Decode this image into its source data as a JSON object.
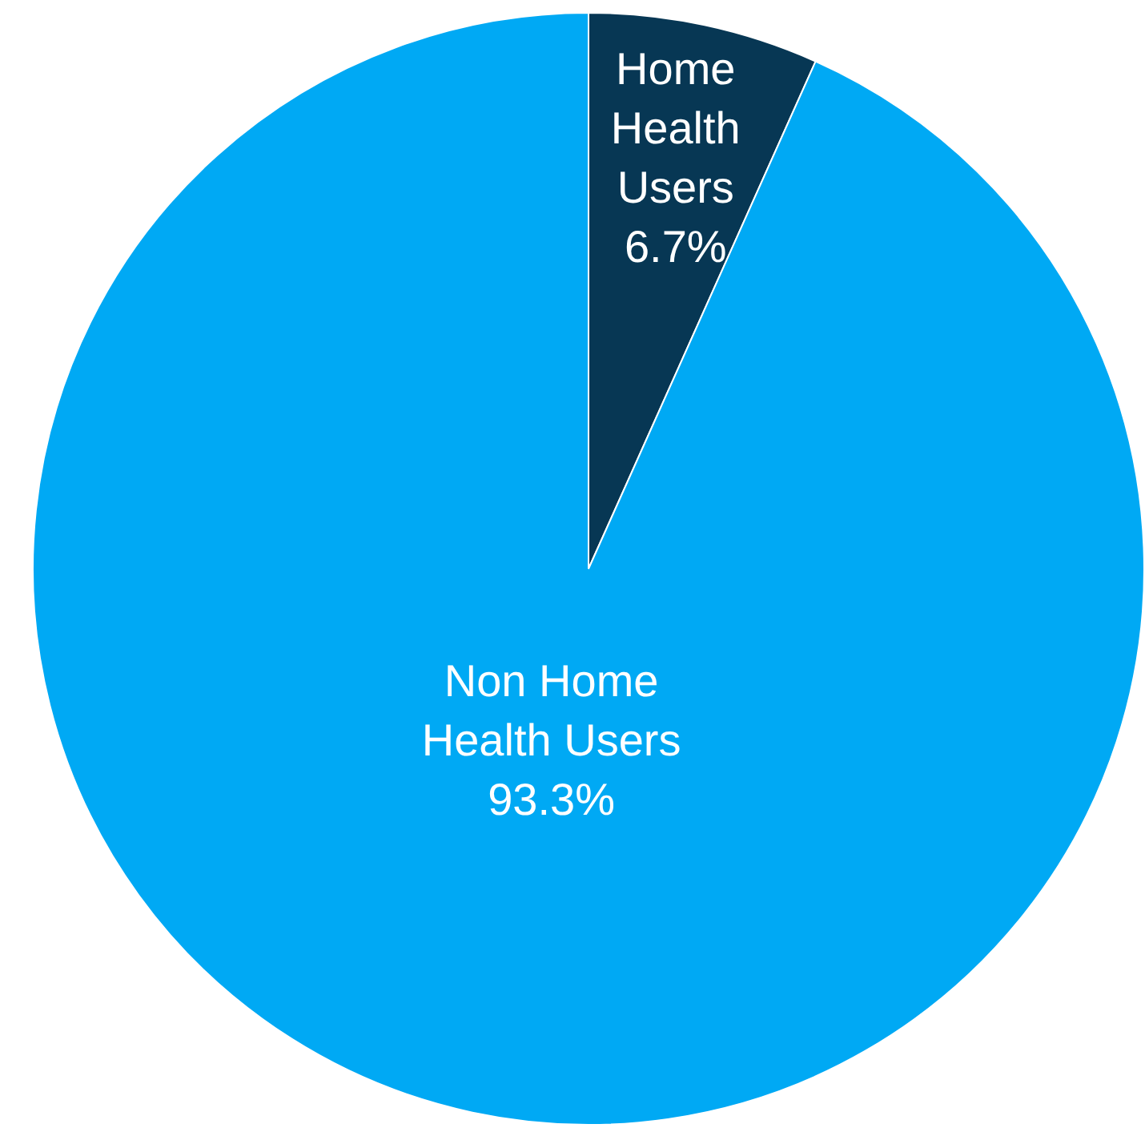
{
  "chart_data": {
    "type": "pie",
    "categories": [
      "Home Health Users",
      "Non Home Health Users"
    ],
    "values": [
      6.7,
      93.3
    ],
    "value_labels": [
      "6.7%",
      "93.3%"
    ],
    "colors": [
      "#073754",
      "#00a9f4"
    ],
    "legend": false
  }
}
